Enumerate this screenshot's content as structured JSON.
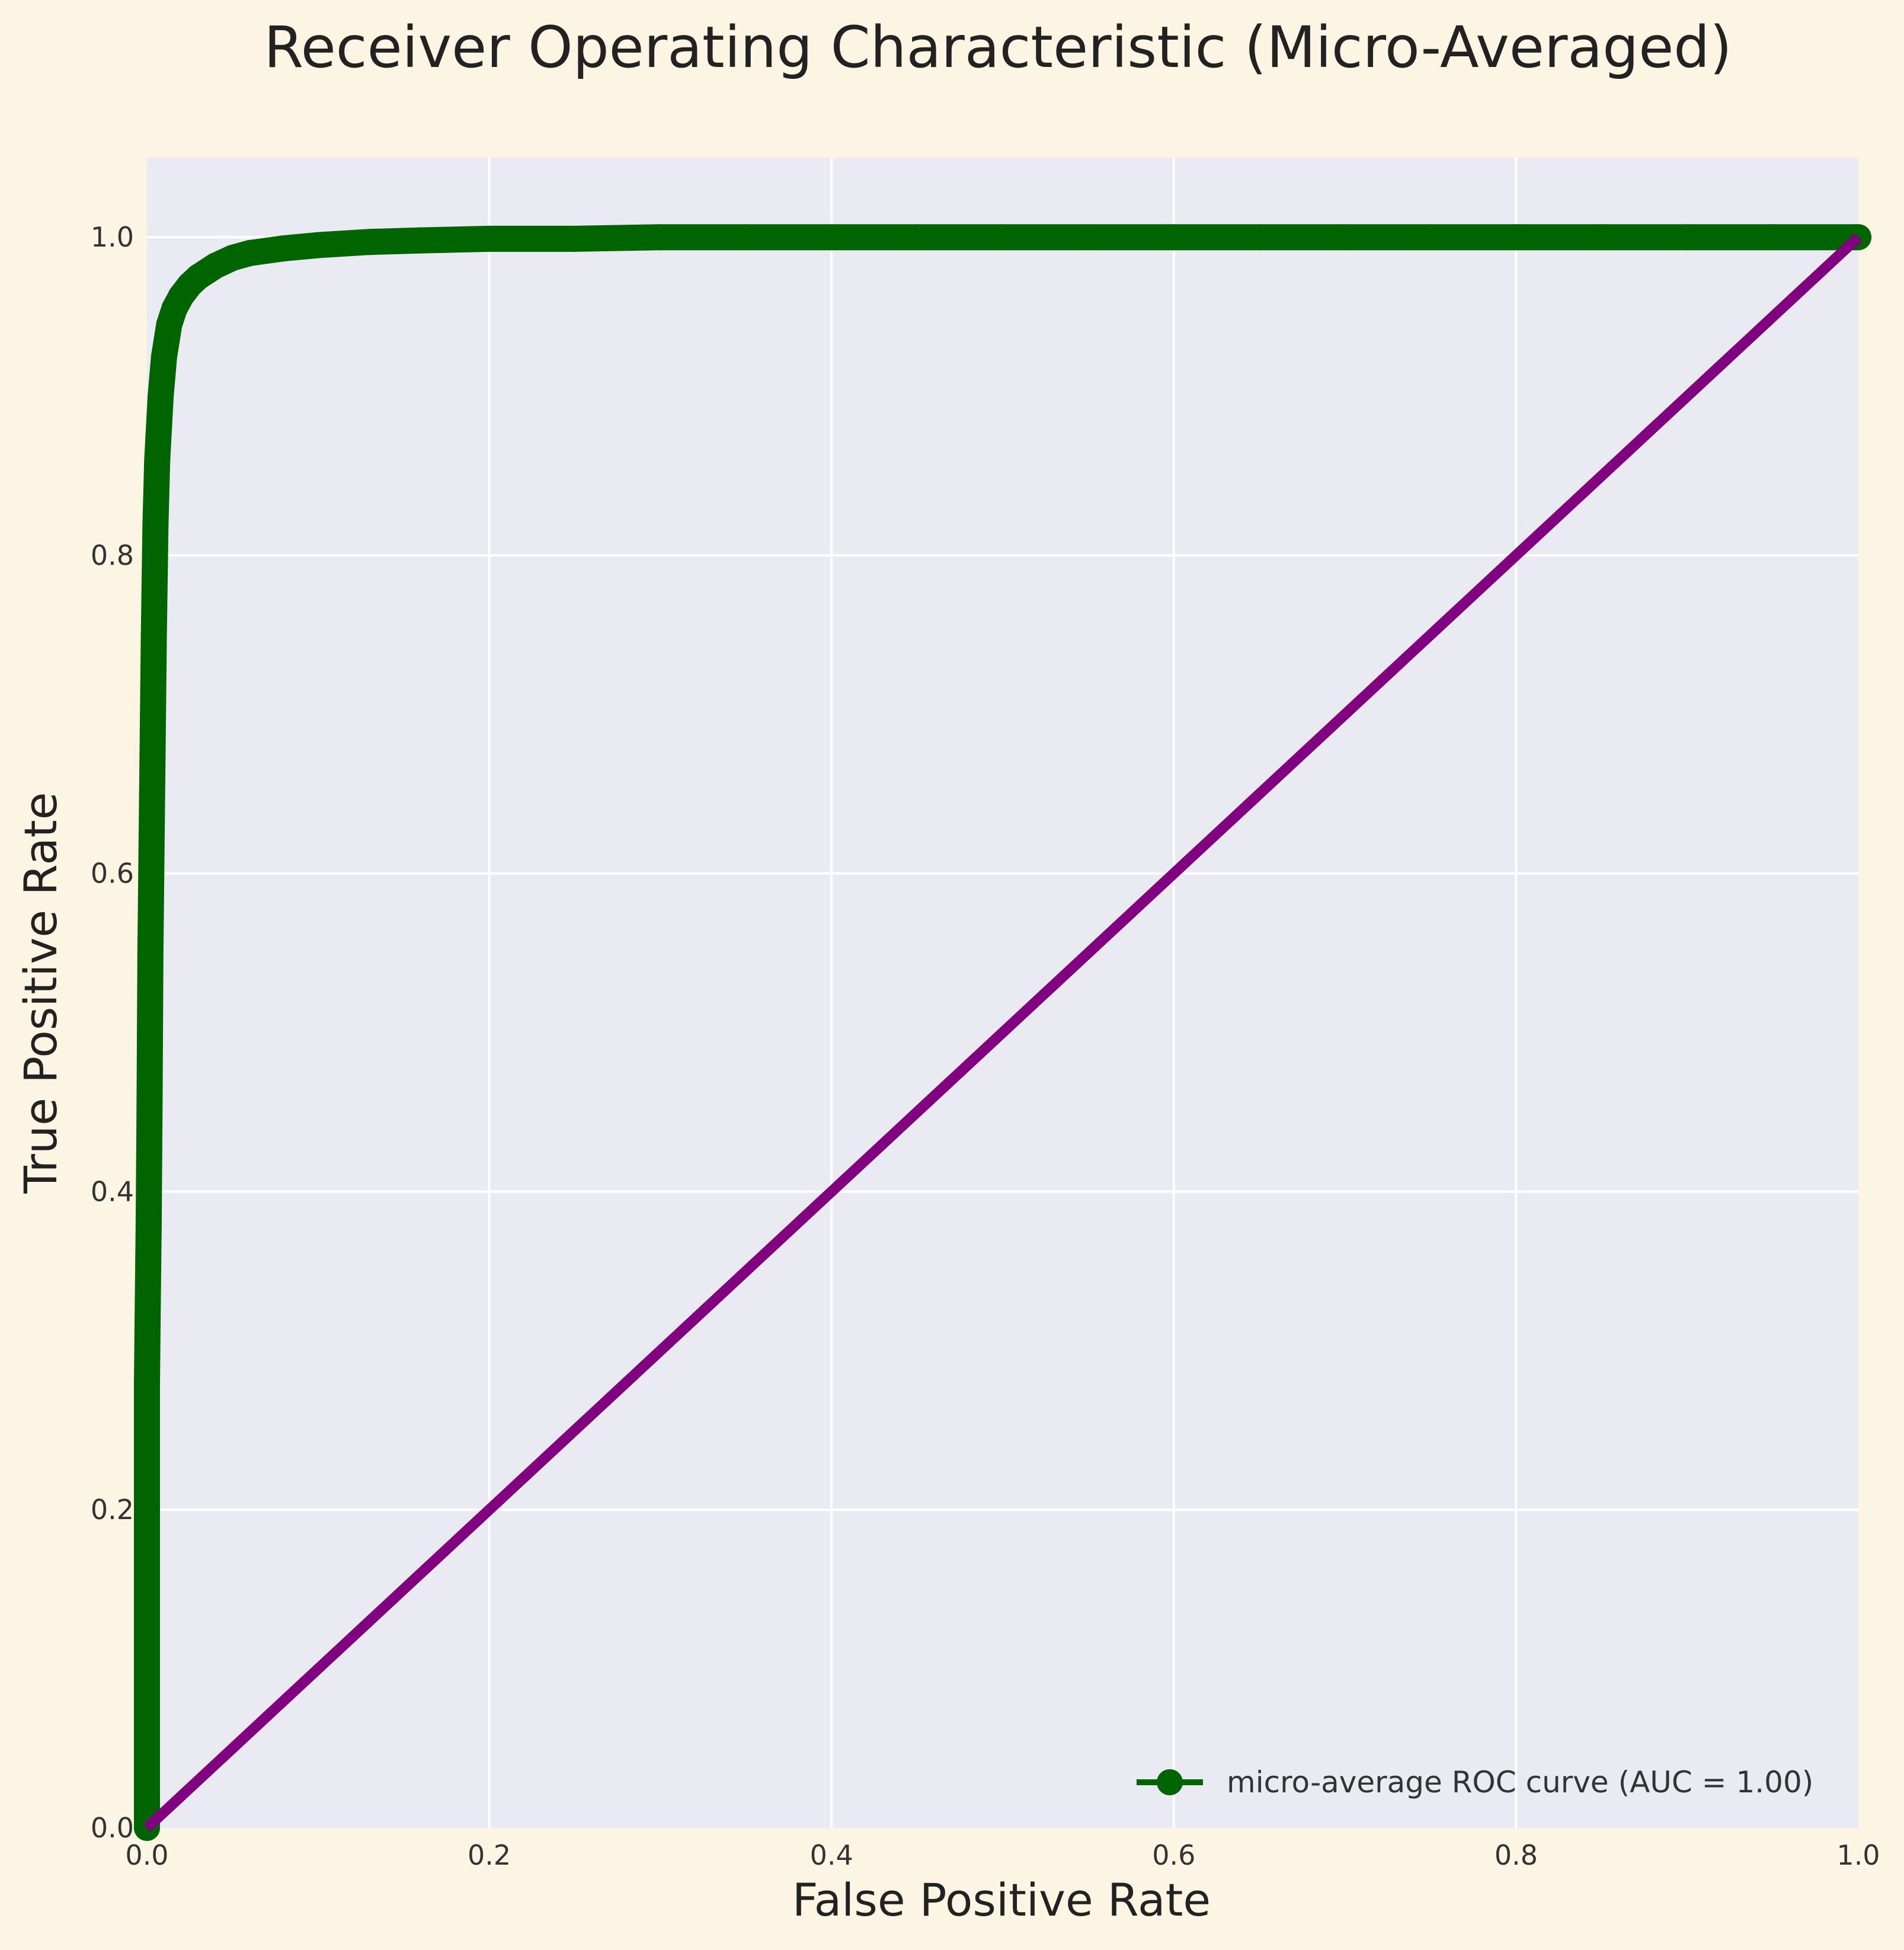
{
  "chart_data": {
    "type": "line",
    "title": "Receiver Operating Characteristic (Micro-Averaged)",
    "xlabel": "False Positive Rate",
    "ylabel": "True Positive Rate",
    "xlim": [
      0.0,
      1.0
    ],
    "ylim": [
      0.0,
      1.05
    ],
    "xticks": [
      0.0,
      0.2,
      0.4,
      0.6,
      0.8,
      1.0
    ],
    "xtick_labels": [
      "0.0",
      "0.2",
      "0.4",
      "0.6",
      "0.8",
      "1.0"
    ],
    "yticks": [
      0.0,
      0.2,
      0.4,
      0.6,
      0.8,
      1.0
    ],
    "ytick_labels": [
      "0.0",
      "0.2",
      "0.4",
      "0.6",
      "0.8",
      "1.0"
    ],
    "grid": true,
    "legend_position": "lower-right",
    "series": [
      {
        "name": "micro-average ROC curve (AUC = 1.00)",
        "color": "#006400",
        "marker": "circle",
        "x": [
          0.0,
          0.0,
          0.0,
          0.0005,
          0.001,
          0.0015,
          0.002,
          0.003,
          0.004,
          0.005,
          0.006,
          0.008,
          0.01,
          0.013,
          0.016,
          0.02,
          0.025,
          0.03,
          0.04,
          0.05,
          0.06,
          0.08,
          0.1,
          0.13,
          0.16,
          0.2,
          0.25,
          0.3,
          0.35,
          0.4,
          0.45,
          0.5,
          0.55,
          0.6,
          0.65,
          0.7,
          0.75,
          0.8,
          0.85,
          0.9,
          0.95,
          1.0
        ],
        "y": [
          0.0,
          0.24,
          0.28,
          0.33,
          0.38,
          0.45,
          0.55,
          0.65,
          0.75,
          0.82,
          0.86,
          0.9,
          0.925,
          0.945,
          0.955,
          0.963,
          0.97,
          0.975,
          0.982,
          0.987,
          0.99,
          0.993,
          0.995,
          0.997,
          0.998,
          0.999,
          0.999,
          1.0,
          1.0,
          1.0,
          1.0,
          1.0,
          1.0,
          1.0,
          1.0,
          1.0,
          1.0,
          1.0,
          1.0,
          1.0,
          1.0,
          1.0
        ]
      },
      {
        "name": "",
        "color": "#800080",
        "marker": "none",
        "x": [
          0.0,
          1.0
        ],
        "y": [
          0.0,
          1.0
        ]
      }
    ]
  },
  "colors": {
    "figure_background": "#fdf5e4",
    "plot_background": "#eaeaf2",
    "grid": "#ffffff",
    "text": "#222222"
  }
}
